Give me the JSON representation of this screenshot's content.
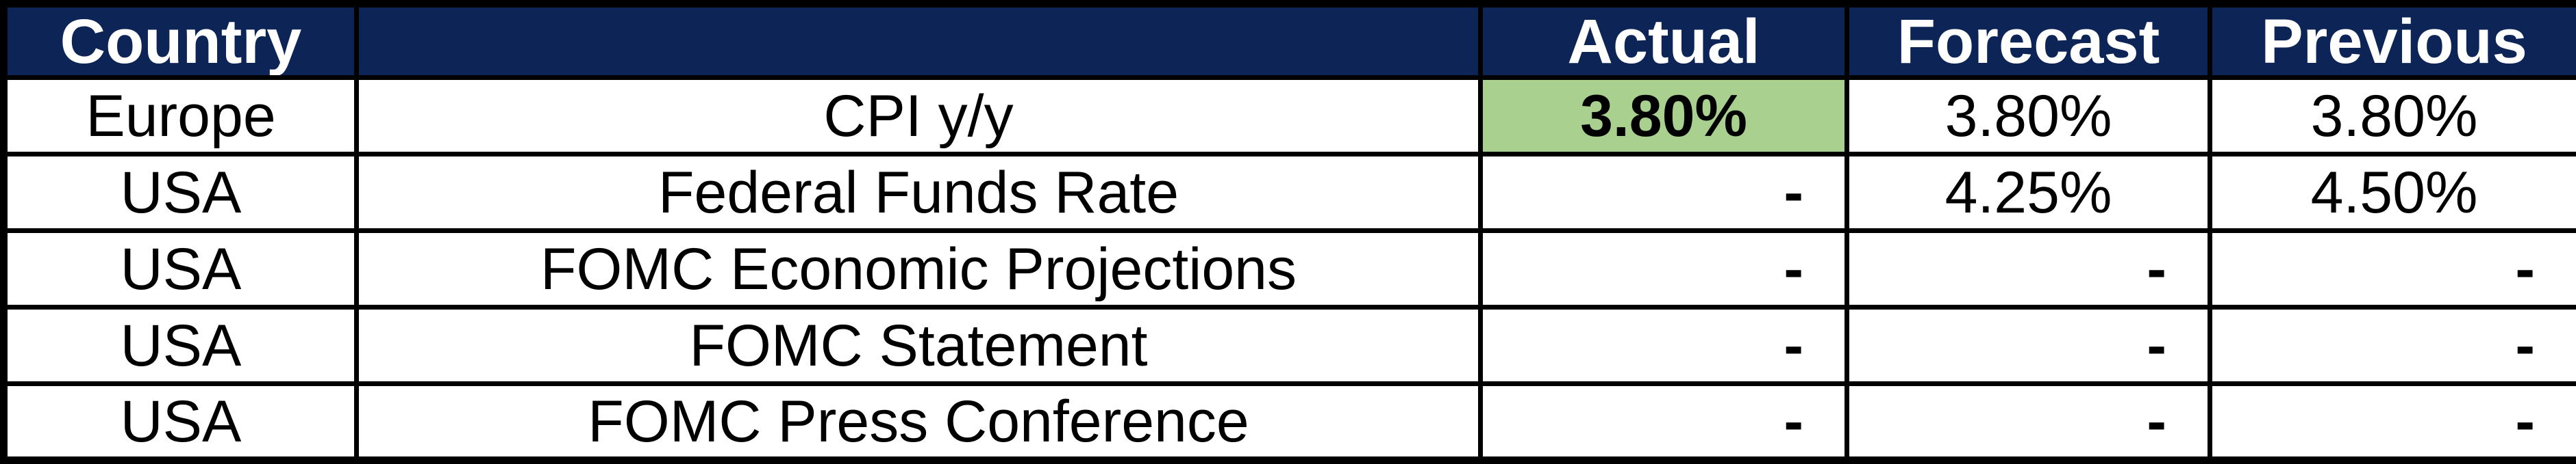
{
  "table": {
    "columns": [
      {
        "key": "country",
        "label": "Country"
      },
      {
        "key": "event",
        "label": ""
      },
      {
        "key": "actual",
        "label": "Actual"
      },
      {
        "key": "forecast",
        "label": "Forecast"
      },
      {
        "key": "previous",
        "label": "Previous"
      }
    ],
    "rows": [
      {
        "country": "Europe",
        "event": "CPI y/y",
        "actual": "3.80%",
        "forecast": "3.80%",
        "previous": "3.80%",
        "actual_highlight": true
      },
      {
        "country": "USA",
        "event": "Federal Funds Rate",
        "actual": "-",
        "forecast": "4.25%",
        "previous": "4.50%",
        "actual_highlight": false
      },
      {
        "country": "USA",
        "event": "FOMC Economic Projections",
        "actual": "-",
        "forecast": "-",
        "previous": "-",
        "actual_highlight": false
      },
      {
        "country": "USA",
        "event": "FOMC Statement",
        "actual": "-",
        "forecast": "-",
        "previous": "-",
        "actual_highlight": false
      },
      {
        "country": "USA",
        "event": "FOMC Press Conference",
        "actual": "-",
        "forecast": "-",
        "previous": "-",
        "actual_highlight": false
      }
    ],
    "colors": {
      "header_bg": "#0d2457",
      "header_text": "#ffffff",
      "highlight_green": "#a9d08e",
      "border": "#000000",
      "cell_bg": "#ffffff",
      "text": "#000000"
    }
  }
}
